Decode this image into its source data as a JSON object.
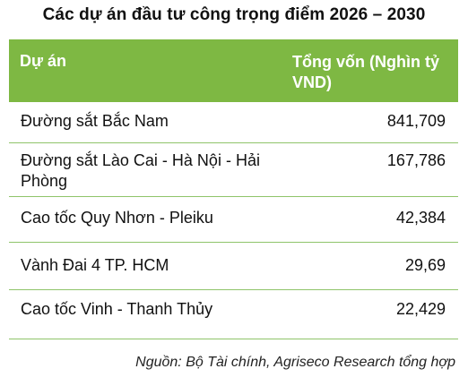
{
  "title": "Các dự án đầu tư công trọng điểm 2026 – 2030",
  "table": {
    "headers": {
      "project": "Dự án",
      "capital": "Tổng vốn (Nghìn tỷ VND)"
    },
    "rows": [
      {
        "project": "Đường sắt Bắc Nam",
        "capital": "841,709"
      },
      {
        "project": "Đường sắt Lào Cai - Hà Nội - Hải Phòng",
        "capital": "167,786"
      },
      {
        "project": "Cao tốc Quy Nhơn - Pleiku",
        "capital": "42,384"
      },
      {
        "project": "Vành Đai 4 TP. HCM",
        "capital": "29,69"
      },
      {
        "project": "Cao tốc Vinh - Thanh Thủy",
        "capital": "22,429"
      }
    ],
    "accent_color": "#7eb843",
    "border_color": "#8fc46a"
  },
  "source": "Nguồn: Bộ Tài chính, Agriseco Research tổng hợp"
}
